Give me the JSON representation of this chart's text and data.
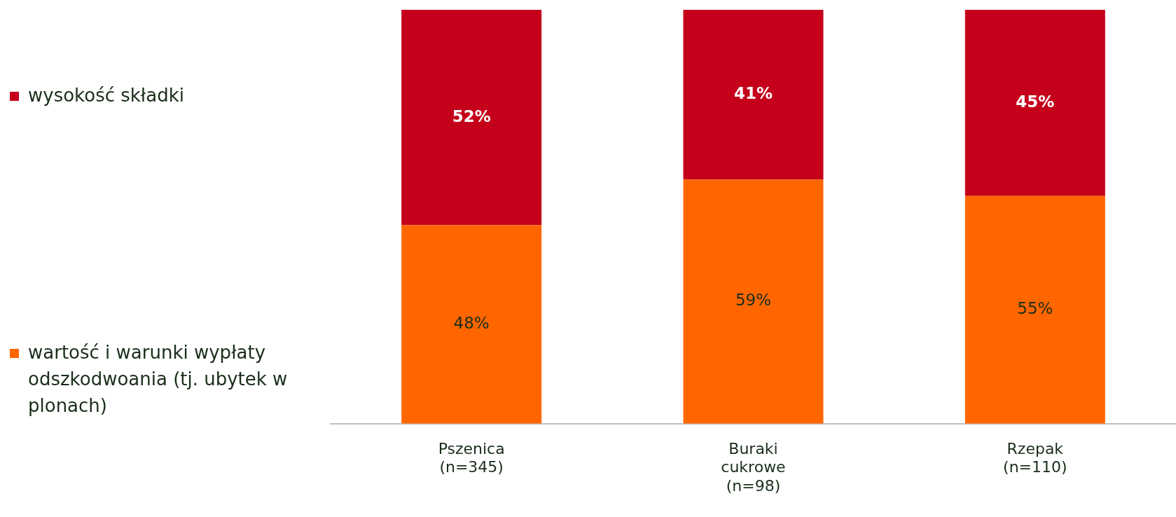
{
  "chart_data": {
    "type": "bar",
    "stacked": true,
    "categories": [
      "Pszenica (n=345)",
      "Buraki cukrowe (n=98)",
      "Rzepak (n=110)"
    ],
    "series": [
      {
        "name": "wartość i warunki wypłaty odszkodwoania (tj. ubytek w plonach)",
        "color": "#ff6600",
        "values": [
          48,
          59,
          55
        ],
        "value_labels": [
          "48%",
          "59%",
          "55%"
        ]
      },
      {
        "name": "wysokość składki",
        "color": "#c4001a",
        "values": [
          52,
          41,
          45
        ],
        "value_labels": [
          "52%",
          "41%",
          "45%"
        ]
      }
    ],
    "legend": "left",
    "grid": false
  }
}
